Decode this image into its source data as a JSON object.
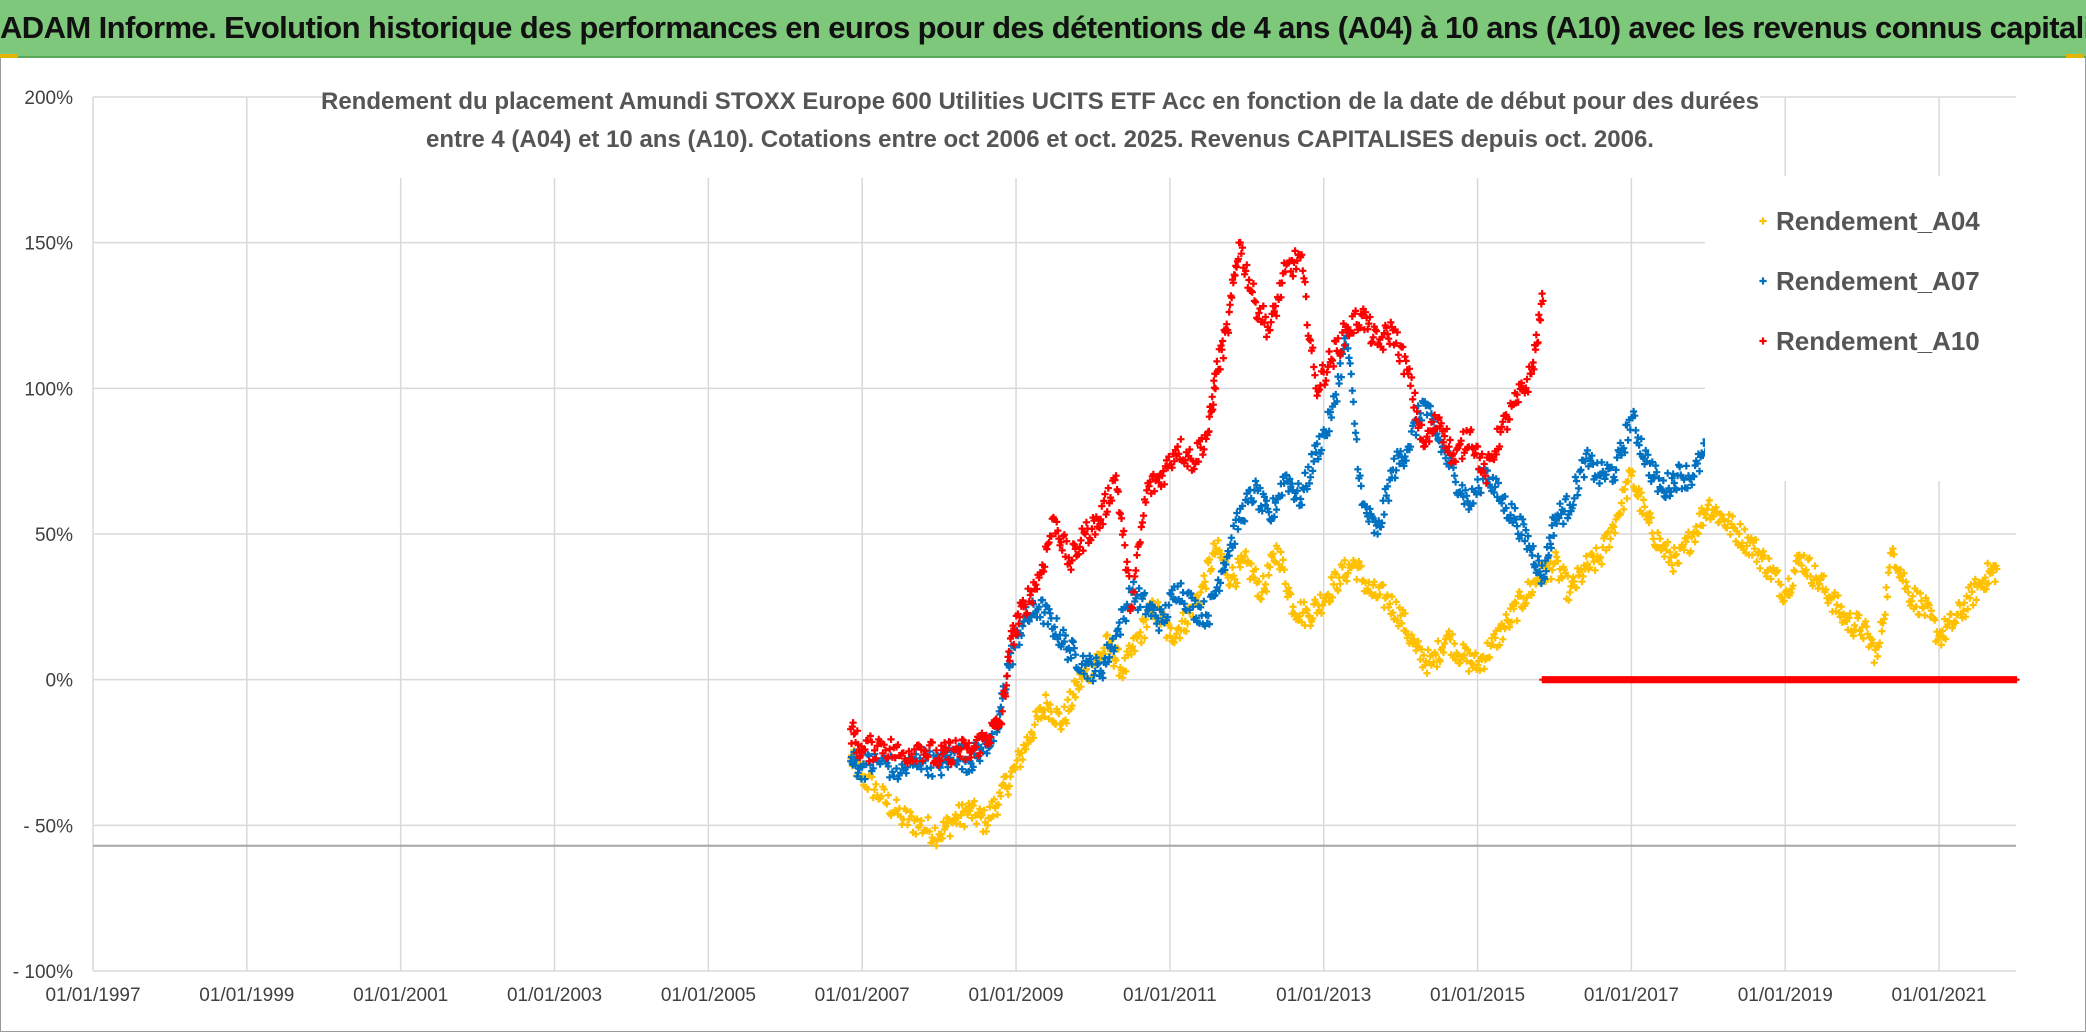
{
  "banner": {
    "title": "ADAM Informe. Evolution historique des performances en euros pour des détentions de 4 ans (A04) à 10 ans (A10) avec les revenus connus capitalisés"
  },
  "chart_data": {
    "type": "scatter",
    "title_lines": [
      "Rendement du placement Amundi STOXX Europe 600 Utilities UCITS ETF Acc en fonction de la date de début pour des durées",
      "entre 4 (A04) et 10 ans (A10). Cotations entre oct 2006 et oct. 2025. Revenus CAPITALISES depuis oct. 2006."
    ],
    "xlabel": "",
    "ylabel": "",
    "x_range": [
      1997.0,
      2022.0
    ],
    "ylim": [
      -100,
      200
    ],
    "y_ticks": [
      200,
      150,
      100,
      50,
      0,
      -50,
      -100
    ],
    "y_tick_labels": [
      "200%",
      "150%",
      "100%",
      "50%",
      "0%",
      "- 50%",
      "- 100%"
    ],
    "x_ticks": [
      1997,
      1999,
      2001,
      2003,
      2005,
      2007,
      2009,
      2011,
      2013,
      2015,
      2017,
      2019,
      2021
    ],
    "x_tick_labels": [
      "01/01/1997",
      "01/01/1999",
      "01/01/2001",
      "01/01/2003",
      "01/01/2005",
      "01/01/2007",
      "01/01/2009",
      "01/01/2011",
      "01/01/2013",
      "01/01/2015",
      "01/01/2017",
      "01/01/2019",
      "01/01/2021"
    ],
    "reference_line_y": -57,
    "legend_position": "top-right",
    "marker": "+",
    "series": [
      {
        "name": "Rendement_A04",
        "color": "#ffc000",
        "x": [
          2006.85,
          2007.0,
          2007.25,
          2007.5,
          2007.75,
          2008.0,
          2008.2,
          2008.4,
          2008.6,
          2008.8,
          2009.0,
          2009.2,
          2009.4,
          2009.6,
          2009.8,
          2010.0,
          2010.2,
          2010.4,
          2010.6,
          2010.8,
          2011.0,
          2011.2,
          2011.4,
          2011.6,
          2011.8,
          2012.0,
          2012.2,
          2012.4,
          2012.6,
          2012.8,
          2013.0,
          2013.2,
          2013.4,
          2013.6,
          2013.8,
          2014.0,
          2014.2,
          2014.4,
          2014.6,
          2014.8,
          2015.0,
          2015.2,
          2015.4,
          2015.6,
          2015.8,
          2016.0,
          2016.2,
          2016.4,
          2016.6,
          2016.8,
          2017.0,
          2017.2,
          2017.4,
          2017.6,
          2017.8,
          2018.0,
          2018.2,
          2018.4,
          2018.6,
          2018.8,
          2019.0,
          2019.2,
          2019.4,
          2019.6,
          2019.8,
          2020.0,
          2020.2,
          2020.4,
          2020.6,
          2020.8,
          2021.0,
          2021.2,
          2021.4,
          2021.6,
          2021.75
        ],
        "y": [
          -27,
          -33,
          -40,
          -47,
          -50,
          -53,
          -48,
          -45,
          -49,
          -40,
          -30,
          -18,
          -8,
          -15,
          -2,
          5,
          12,
          3,
          15,
          25,
          15,
          20,
          30,
          45,
          35,
          40,
          30,
          45,
          25,
          22,
          28,
          35,
          40,
          30,
          28,
          22,
          10,
          5,
          15,
          8,
          5,
          12,
          20,
          28,
          35,
          40,
          30,
          38,
          42,
          55,
          70,
          55,
          45,
          40,
          50,
          60,
          55,
          50,
          45,
          38,
          30,
          42,
          35,
          28,
          20,
          18,
          8,
          45,
          30,
          25,
          15,
          20,
          28,
          35,
          38
        ]
      },
      {
        "name": "Rendement_A07",
        "color": "#0070c0",
        "x": [
          2006.85,
          2007.0,
          2007.25,
          2007.5,
          2007.75,
          2008.0,
          2008.2,
          2008.4,
          2008.6,
          2008.75,
          2008.9,
          2009.1,
          2009.3,
          2009.5,
          2009.7,
          2009.9,
          2010.1,
          2010.3,
          2010.5,
          2010.7,
          2010.9,
          2011.1,
          2011.3,
          2011.5,
          2011.7,
          2011.9,
          2012.1,
          2012.3,
          2012.5,
          2012.7,
          2012.9,
          2013.1,
          2013.3,
          2013.5,
          2013.7,
          2013.9,
          2014.1,
          2014.3,
          2014.5,
          2014.7,
          2014.9,
          2015.1,
          2015.3,
          2015.5,
          2015.7,
          2015.85,
          2016.0,
          2016.2,
          2016.4,
          2016.6,
          2016.8,
          2017.0,
          2017.2,
          2017.4,
          2017.6,
          2017.8,
          2018.0,
          2018.2,
          2018.4,
          2018.6
        ],
        "y": [
          -28,
          -30,
          -28,
          -32,
          -27,
          -30,
          -25,
          -28,
          -22,
          -18,
          5,
          20,
          25,
          18,
          10,
          5,
          3,
          15,
          30,
          25,
          20,
          32,
          25,
          22,
          40,
          55,
          65,
          55,
          70,
          62,
          78,
          90,
          118,
          60,
          50,
          72,
          80,
          95,
          82,
          70,
          60,
          72,
          62,
          55,
          45,
          35,
          55,
          60,
          75,
          70,
          72,
          90,
          75,
          65,
          70,
          70,
          80,
          75,
          85,
          88
        ]
      },
      {
        "name": "Rendement_A10",
        "color": "#ff0000",
        "x": [
          2006.85,
          2007.0,
          2007.25,
          2007.5,
          2007.75,
          2008.0,
          2008.2,
          2008.4,
          2008.6,
          2008.8,
          2008.95,
          2009.1,
          2009.3,
          2009.5,
          2009.7,
          2009.9,
          2010.1,
          2010.3,
          2010.5,
          2010.7,
          2010.9,
          2011.1,
          2011.3,
          2011.5,
          2011.6,
          2011.75,
          2011.9,
          2012.1,
          2012.3,
          2012.5,
          2012.7,
          2012.9,
          2013.1,
          2013.3,
          2013.5,
          2013.7,
          2013.9,
          2014.1,
          2014.3,
          2014.5,
          2014.7,
          2014.9,
          2015.1,
          2015.3,
          2015.5,
          2015.7,
          2015.85
        ],
        "y": [
          -17,
          -25,
          -22,
          -26,
          -23,
          -27,
          -24,
          -25,
          -20,
          -15,
          15,
          25,
          35,
          55,
          40,
          50,
          55,
          70,
          25,
          65,
          70,
          80,
          75,
          85,
          105,
          120,
          150,
          130,
          120,
          140,
          145,
          100,
          110,
          120,
          125,
          115,
          120,
          105,
          80,
          90,
          75,
          85,
          70,
          85,
          95,
          105,
          130
        ]
      },
      {
        "name": "Rendement_A10 (zero)",
        "color": "#ff0000",
        "x_range": [
          2015.85,
          2022.0
        ],
        "y_constant": 0,
        "hidden_from_legend": true
      }
    ]
  }
}
